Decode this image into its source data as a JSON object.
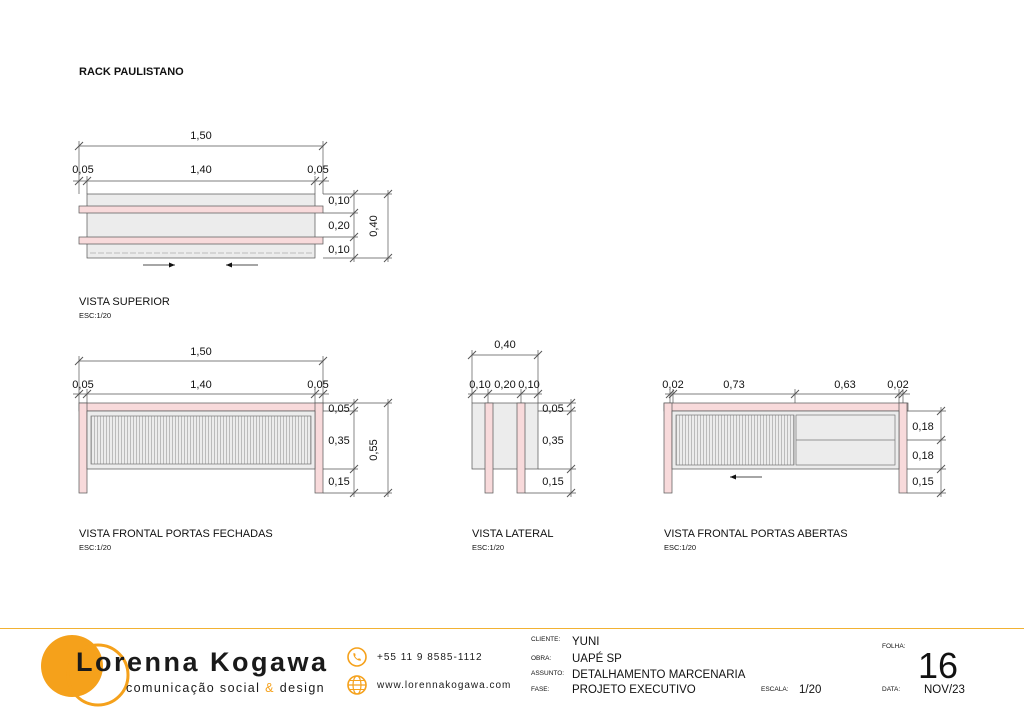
{
  "title": "RACK PAULISTANO",
  "views": [
    {
      "name": "VISTA SUPERIOR",
      "scale": "ESC:1/20"
    },
    {
      "name": "VISTA FRONTAL PORTAS FECHADAS",
      "scale": "ESC:1/20"
    },
    {
      "name": "VISTA LATERAL",
      "scale": "ESC:1/20"
    },
    {
      "name": "VISTA FRONTAL PORTAS ABERTAS",
      "scale": "ESC:1/20"
    }
  ],
  "dims": {
    "top_total": "1,50",
    "top_left": "0,05",
    "top_mid": "1,40",
    "top_right": "0,05",
    "top_r1": "0,10",
    "top_r2": "0,20",
    "top_r3": "0,10",
    "top_depth": "0,40",
    "front_total": "1,50",
    "front_left": "0,05",
    "front_mid": "1,40",
    "front_right": "0,05",
    "front_r1": "0,05",
    "front_r2": "0,35",
    "front_r3": "0,15",
    "front_height": "0,55",
    "side_total": "0,40",
    "side_a": "0,10",
    "side_b": "0,20",
    "side_c": "0,10",
    "side_r1": "0,05",
    "side_r2": "0,35",
    "side_r3": "0,15",
    "open_a": "0,02",
    "open_b": "0,73",
    "open_c": "0,63",
    "open_d": "0,02",
    "open_r1": "0,18",
    "open_r2": "0,18",
    "open_r3": "0,15"
  },
  "brand": {
    "name": "Lorenna Kogawa",
    "tagline_a": "comunicação social",
    "tagline_amp": "&",
    "tagline_b": "design",
    "phone": "+55 11 9 8585-1112",
    "website": "www.lorennakogawa.com",
    "phone_icon": "phone-icon",
    "web_icon": "globe-icon",
    "accent": "#f5a11b"
  },
  "info": {
    "cliente_label": "CLIENTE:",
    "cliente": "YUNI",
    "obra_label": "OBRA:",
    "obra": "UAPÉ SP",
    "assunto_label": "ASSUNTO:",
    "assunto": "DETALHAMENTO MARCENARIA",
    "fase_label": "FASE:",
    "fase": "PROJETO EXECUTIVO",
    "escala_label": "ESCALA:",
    "escala": "1/20",
    "folha_label": "FOLHA:",
    "folha": "16",
    "data_label": "DATA:",
    "data": "NOV/23"
  },
  "colors": {
    "wood_pink": "#f8dadb",
    "body_grey": "#ececec",
    "line": "#444444"
  }
}
